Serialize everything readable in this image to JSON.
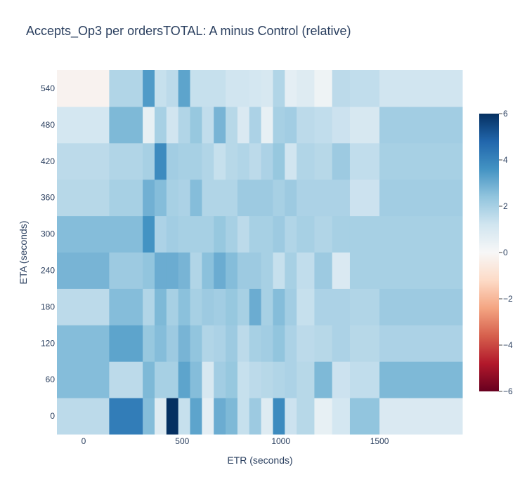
{
  "chart_data": {
    "type": "heatmap",
    "title": "Accepts_Op3 per ordersTOTAL: A minus Control (relative)",
    "xlabel": "ETR (seconds)",
    "ylabel": "ETA (seconds)",
    "x_ticks": [
      {
        "value": 0,
        "label": "0"
      },
      {
        "value": 500,
        "label": "500"
      },
      {
        "value": 1000,
        "label": "1000"
      },
      {
        "value": 1500,
        "label": "1500"
      }
    ],
    "y_ticks": [
      {
        "value": 0,
        "label": "0"
      },
      {
        "value": 60,
        "label": "60"
      },
      {
        "value": 120,
        "label": "120"
      },
      {
        "value": 180,
        "label": "180"
      },
      {
        "value": 240,
        "label": "240"
      },
      {
        "value": 300,
        "label": "300"
      },
      {
        "value": 360,
        "label": "360"
      },
      {
        "value": 420,
        "label": "420"
      },
      {
        "value": 480,
        "label": "480"
      },
      {
        "value": 540,
        "label": "540"
      }
    ],
    "x_edges": [
      -135,
      130,
      300,
      360,
      420,
      480,
      540,
      600,
      660,
      720,
      780,
      840,
      900,
      960,
      1020,
      1080,
      1170,
      1260,
      1350,
      1500,
      1650,
      1920
    ],
    "y_edges": [
      -30,
      30,
      90,
      150,
      210,
      270,
      330,
      390,
      450,
      510,
      570
    ],
    "z": [
      [
        1.6,
        4.2,
        2.6,
        0.8,
        6.0,
        1.4,
        3.2,
        0.6,
        3.0,
        2.7,
        1.4,
        2.2,
        0.8,
        3.8,
        1.3,
        1.7,
        0.5,
        1.1,
        2.4,
        0.9,
        0.9
      ],
      [
        2.6,
        1.6,
        2.7,
        2.0,
        2.0,
        3.2,
        2.6,
        1.0,
        2.1,
        2.3,
        1.4,
        1.6,
        1.7,
        1.8,
        1.9,
        1.7,
        2.7,
        1.3,
        1.5,
        2.7,
        2.7
      ],
      [
        2.6,
        3.2,
        2.3,
        2.6,
        2.2,
        2.8,
        2.4,
        1.8,
        1.9,
        2.2,
        1.6,
        2.0,
        2.1,
        2.4,
        1.9,
        1.6,
        1.7,
        1.9,
        1.7,
        1.9,
        1.9
      ],
      [
        1.6,
        2.6,
        1.8,
        2.7,
        2.0,
        2.5,
        2.0,
        2.2,
        2.1,
        2.3,
        2.0,
        3.0,
        2.0,
        2.6,
        2.1,
        1.4,
        1.9,
        1.9,
        1.8,
        2.2,
        2.2
      ],
      [
        2.8,
        2.2,
        2.4,
        3.0,
        3.0,
        2.8,
        1.8,
        2.5,
        3.0,
        2.6,
        2.2,
        2.2,
        2.0,
        1.4,
        2.0,
        1.5,
        2.2,
        0.9,
        2.0,
        2.0,
        2.0
      ],
      [
        2.6,
        2.6,
        3.6,
        1.9,
        2.1,
        2.0,
        2.0,
        2.0,
        2.3,
        2.0,
        1.6,
        2.0,
        2.0,
        2.2,
        1.8,
        2.0,
        1.8,
        2.0,
        2.0,
        2.0,
        2.0
      ],
      [
        1.7,
        2.0,
        2.9,
        2.6,
        2.0,
        1.9,
        2.6,
        1.8,
        1.8,
        1.8,
        2.2,
        2.2,
        2.2,
        2.0,
        2.2,
        1.9,
        1.9,
        1.9,
        1.3,
        2.1,
        2.1
      ],
      [
        1.6,
        1.8,
        2.0,
        3.8,
        2.1,
        2.0,
        2.0,
        1.8,
        1.4,
        1.7,
        1.8,
        1.6,
        1.9,
        2.3,
        1.2,
        1.8,
        1.7,
        2.2,
        1.5,
        2.0,
        2.0
      ],
      [
        1.1,
        2.7,
        0.5,
        2.0,
        1.2,
        1.8,
        2.3,
        1.5,
        2.8,
        1.7,
        0.9,
        1.9,
        0.5,
        2.0,
        2.1,
        1.6,
        1.5,
        1.3,
        1.0,
        2.1,
        2.1
      ],
      [
        -0.2,
        1.8,
        3.4,
        1.4,
        1.6,
        3.2,
        1.4,
        1.4,
        1.4,
        1.2,
        1.2,
        1.1,
        1.0,
        1.8,
        0.6,
        0.8,
        0.3,
        1.6,
        1.5,
        1.2,
        1.2
      ]
    ],
    "zmin": -6,
    "zmax": 6,
    "colorscale": [
      [
        0.0,
        "#67001f"
      ],
      [
        0.1,
        "#b2182b"
      ],
      [
        0.2,
        "#d6604d"
      ],
      [
        0.3,
        "#f4a582"
      ],
      [
        0.4,
        "#fddbc7"
      ],
      [
        0.5,
        "#f7f7f7"
      ],
      [
        0.6,
        "#d1e5f0"
      ],
      [
        0.7,
        "#92c5de"
      ],
      [
        0.8,
        "#4393c3"
      ],
      [
        0.9,
        "#2166ac"
      ],
      [
        1.0,
        "#053061"
      ]
    ],
    "colorbar_ticks": [
      {
        "value": 6,
        "label": "6"
      },
      {
        "value": 4,
        "label": "4"
      },
      {
        "value": 2,
        "label": "2"
      },
      {
        "value": 0,
        "label": "0"
      },
      {
        "value": -2,
        "label": "−2"
      },
      {
        "value": -4,
        "label": "−4"
      },
      {
        "value": -6,
        "label": "−6"
      }
    ],
    "xlim": [
      -135,
      1920
    ],
    "ylim": [
      -30,
      570
    ]
  }
}
